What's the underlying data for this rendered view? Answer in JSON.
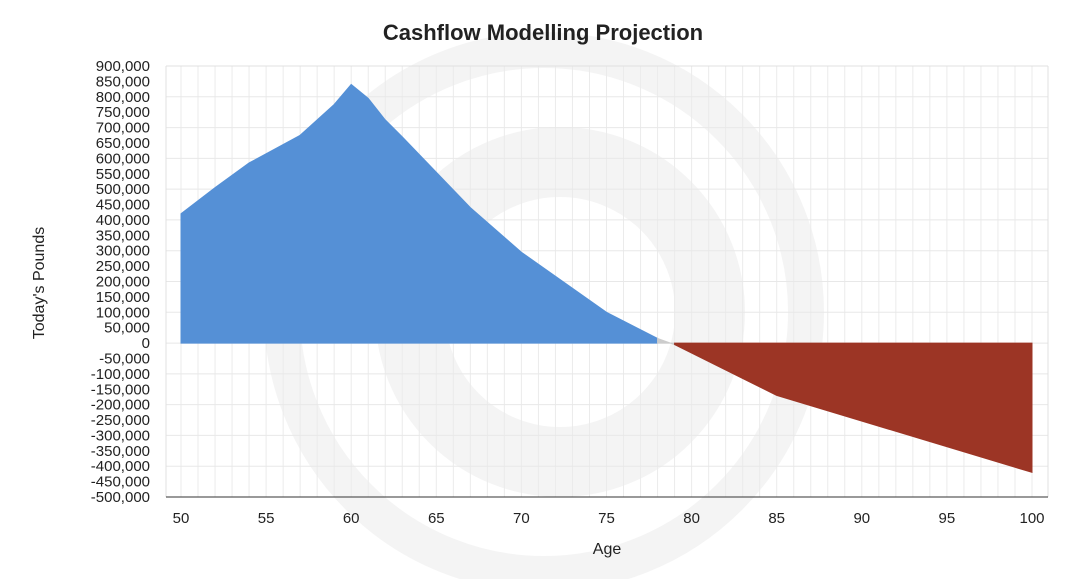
{
  "chart_data": {
    "type": "area",
    "title": "Cashflow Modelling Projection",
    "xlabel": "Age",
    "ylabel": "Today's Pounds",
    "xlim": [
      50,
      100
    ],
    "ylim": [
      -500000,
      900000
    ],
    "x_ticks": [
      50,
      55,
      60,
      65,
      70,
      75,
      80,
      85,
      90,
      95,
      100
    ],
    "y_ticks": [
      900000,
      850000,
      800000,
      750000,
      700000,
      650000,
      600000,
      550000,
      500000,
      450000,
      400000,
      350000,
      300000,
      250000,
      200000,
      150000,
      100000,
      50000,
      0,
      -50000,
      -100000,
      -150000,
      -200000,
      -250000,
      -300000,
      -350000,
      -400000,
      -450000,
      -500000
    ],
    "y_tick_labels": [
      "900,000",
      "850,000",
      "800,000",
      "750,000",
      "700,000",
      "650,000",
      "600,000",
      "550,000",
      "500,000",
      "450,000",
      "400,000",
      "350,000",
      "300,000",
      "250,000",
      "200,000",
      "150,000",
      "100,000",
      "50,000",
      "0",
      "-50,000",
      "-100,000",
      "-150,000",
      "-200,000",
      "-250,000",
      "-300,000",
      "-350,000",
      "-400,000",
      "-450,000",
      "-500,000"
    ],
    "grid": true,
    "legend": false,
    "series": [
      {
        "color": "#5590d6",
        "x": [
          50,
          52,
          54,
          57,
          59,
          60,
          61,
          62,
          63,
          67,
          70,
          75,
          78
        ],
        "values": [
          420000,
          505000,
          585000,
          675000,
          775000,
          840000,
          795000,
          725000,
          670000,
          440000,
          295000,
          100000,
          15000
        ]
      },
      {
        "color": "#cccccc",
        "x": [
          78,
          79
        ],
        "values": [
          15000,
          -5000
        ]
      },
      {
        "color": "#9c3525",
        "x": [
          79,
          85,
          100
        ],
        "values": [
          -5000,
          -170000,
          -420000
        ]
      }
    ]
  }
}
